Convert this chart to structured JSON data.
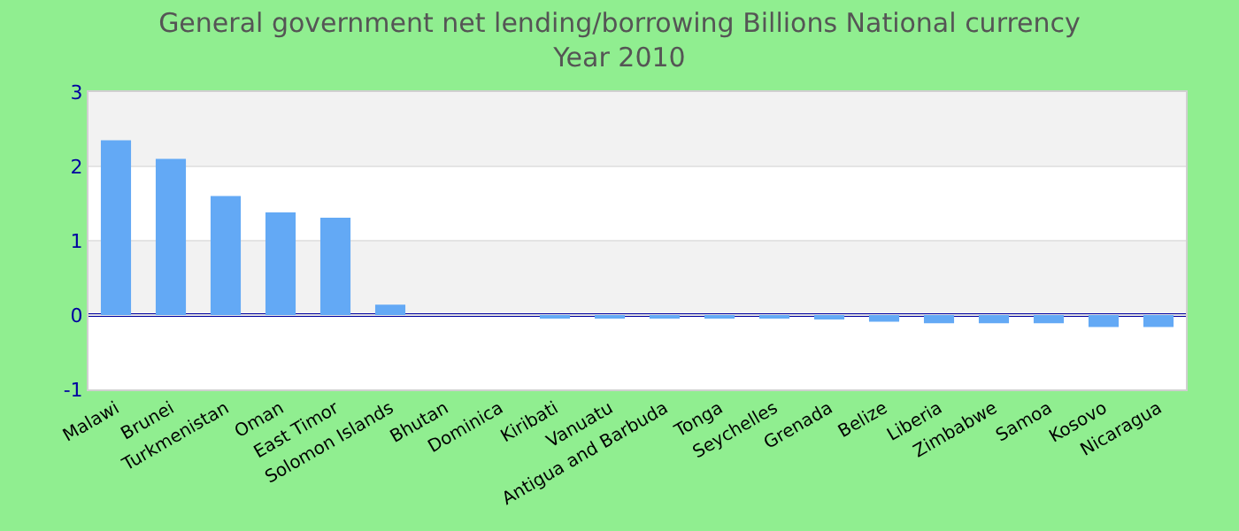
{
  "chart_data": {
    "type": "bar",
    "title": "General government net lending/borrowing Billions National currency",
    "subtitle": "Year 2010",
    "categories": [
      "Malawi",
      "Brunei",
      "Turkmenistan",
      "Oman",
      "East Timor",
      "Solomon Islands",
      "Bhutan",
      "Dominica",
      "Kiribati",
      "Vanuatu",
      "Antigua and Barbuda",
      "Tonga",
      "Seychelles",
      "Grenada",
      "Belize",
      "Liberia",
      "Zimbabwe",
      "Samoa",
      "Kosovo",
      "Nicaragua"
    ],
    "values": [
      2.35,
      2.1,
      1.6,
      1.38,
      1.31,
      0.14,
      0,
      0,
      -0.03,
      -0.03,
      -0.03,
      -0.03,
      -0.03,
      -0.06,
      -0.09,
      -0.11,
      -0.11,
      -0.11,
      -0.16,
      -0.16
    ],
    "color": "#63a9f5",
    "ylim": [
      -1,
      3
    ],
    "yticks": [
      -1,
      0,
      1,
      2,
      3
    ],
    "grid": "y",
    "ref_lines": [
      {
        "axis": "y",
        "value": 0,
        "color": "#0000a0"
      }
    ]
  }
}
